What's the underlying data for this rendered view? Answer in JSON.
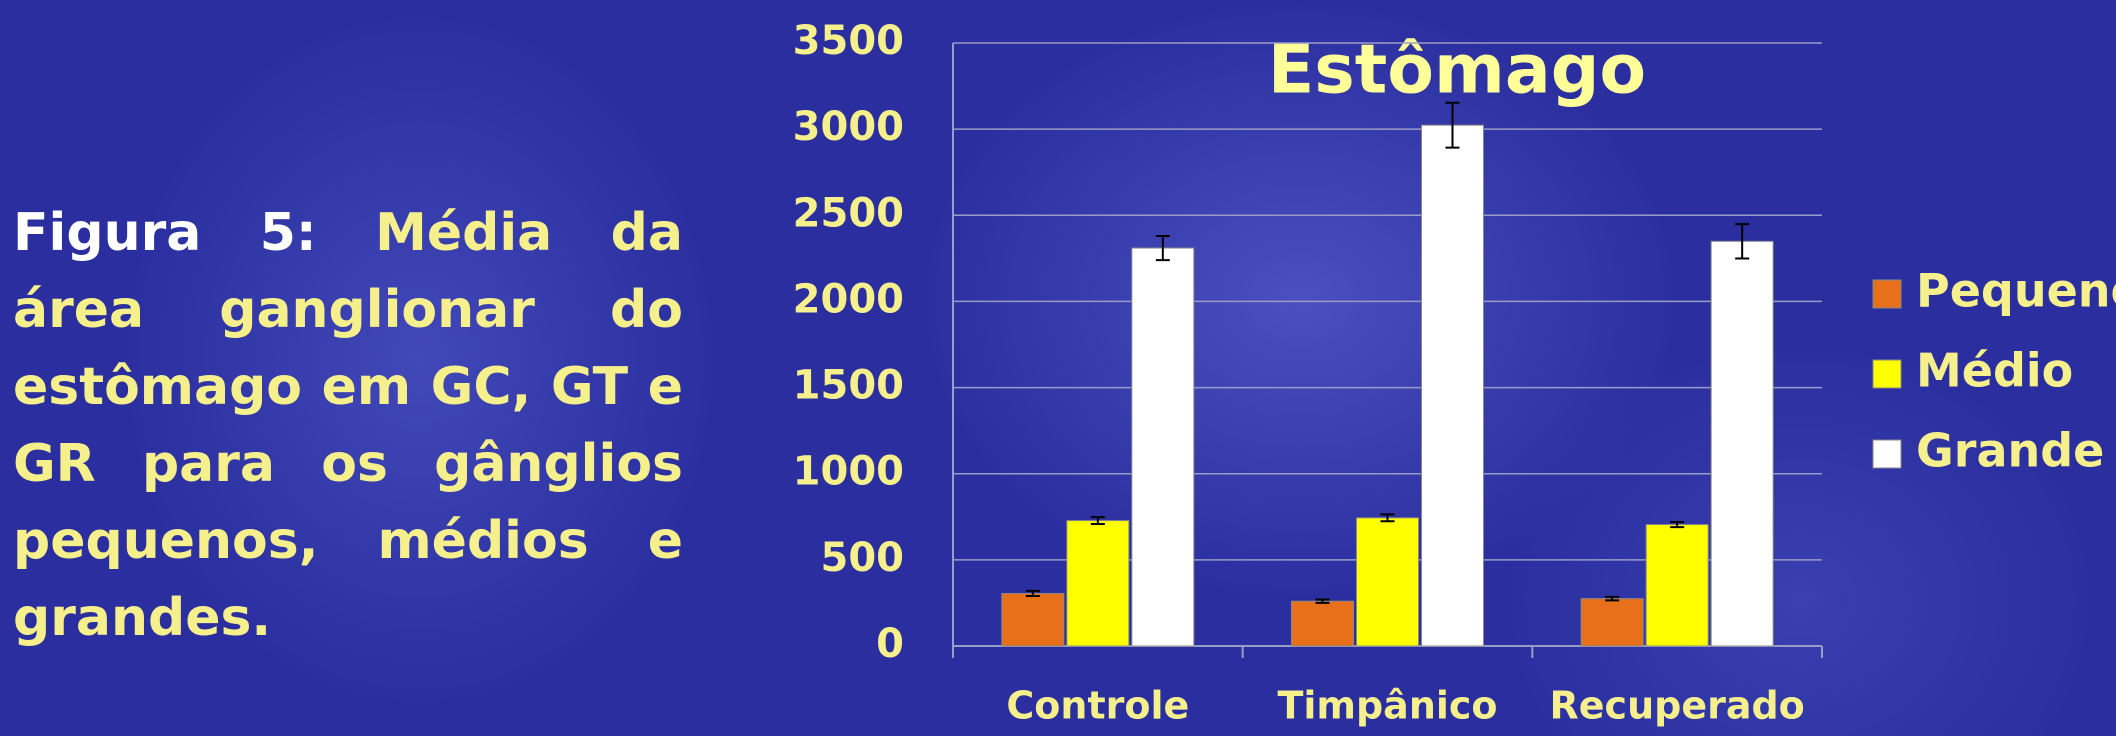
{
  "caption": {
    "label": "Figura 5:",
    "text": "Média da área ganglionar do estômago em GC, GT e GR para os gânglios pequenos, mé­dios e grandes."
  },
  "chart_data": {
    "type": "bar",
    "title": "Estômago",
    "categories": [
      "Controle",
      "Timpânico",
      "Recuperado"
    ],
    "series": [
      {
        "name": "Pequeno",
        "color": "#e8701a",
        "values": [
          305,
          260,
          275
        ],
        "errors": [
          15,
          10,
          10
        ]
      },
      {
        "name": "Médio",
        "color": "#ffff00",
        "values": [
          728,
          744,
          705
        ],
        "errors": [
          20,
          20,
          15
        ]
      },
      {
        "name": "Grande",
        "color": "#ffffff",
        "values": [
          2310,
          3023,
          2349
        ],
        "errors": [
          70,
          130,
          100
        ]
      }
    ],
    "ylim": [
      0,
      3500
    ],
    "yticks": [
      0,
      500,
      1000,
      1500,
      2000,
      2500,
      3000,
      3500
    ],
    "grid": true,
    "legend": "right"
  }
}
